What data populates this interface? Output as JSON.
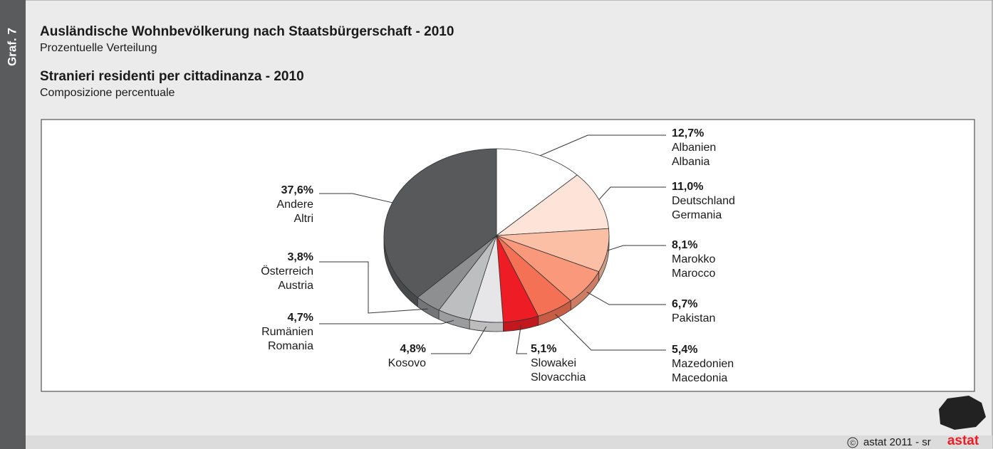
{
  "page": {
    "side_label": "Graf. 7",
    "footer": "astat 2011 - sr",
    "copyright": "©",
    "logo": "astat"
  },
  "chart_data": {
    "type": "pie",
    "title": "Ausländische Wohnbevölkerung nach Staatsbürgerschaft - 2010",
    "subtitle": "Prozentuelle Verteilung",
    "title_it": "Stranieri residenti per cittadinanza - 2010",
    "subtitle_it": "Composizione percentuale",
    "categories": [
      [
        "Albanien",
        "Albania"
      ],
      [
        "Deutschland",
        "Germania"
      ],
      [
        "Marokko",
        "Marocco"
      ],
      [
        "Pakistan"
      ],
      [
        "Mazedonien",
        "Macedonia"
      ],
      [
        "Slowakei",
        "Slovacchia"
      ],
      [
        "Kosovo"
      ],
      [
        "Rumänien",
        "Romania"
      ],
      [
        "Österreich",
        "Austria"
      ],
      [
        "Andere",
        "Altri"
      ]
    ],
    "values": [
      12.7,
      11.0,
      8.1,
      6.7,
      5.4,
      5.1,
      4.8,
      4.7,
      3.8,
      37.6
    ],
    "value_labels": [
      "12,7%",
      "11,0%",
      "8,1%",
      "6,7%",
      "5,4%",
      "5,1%",
      "4,8%",
      "4,7%",
      "3,8%",
      "37,6%"
    ],
    "colors": [
      "#ffffff",
      "#fde3d8",
      "#fbbfa5",
      "#f9987a",
      "#f47155",
      "#ee1c25",
      "#e6e6e8",
      "#bdbec0",
      "#8e8f91",
      "#58595b"
    ]
  }
}
